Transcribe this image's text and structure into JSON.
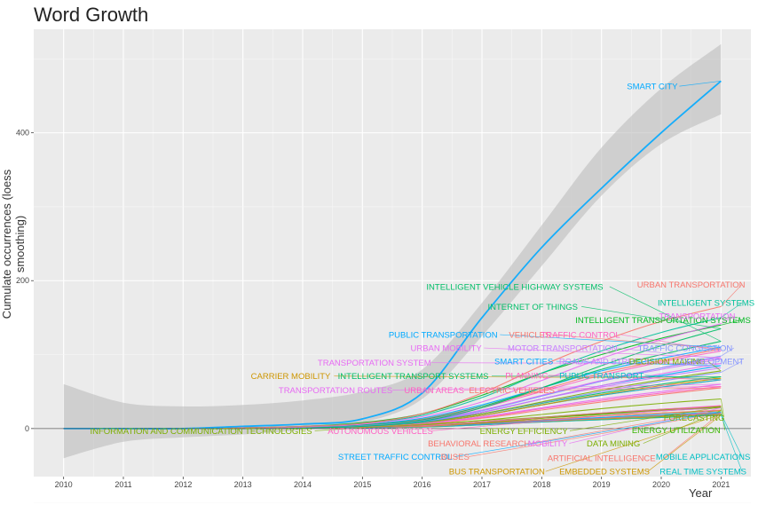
{
  "chart_data": {
    "type": "line",
    "title": "Word Growth",
    "xlabel": "Year",
    "ylabel": "Cumulate occurrences (loess smoothing)",
    "xlim": [
      2009.5,
      2021.5
    ],
    "ylim": [
      -65,
      540
    ],
    "x_ticks": [
      2010,
      2011,
      2012,
      2013,
      2014,
      2015,
      2016,
      2017,
      2018,
      2019,
      2020,
      2021
    ],
    "y_ticks": [
      0,
      200,
      400
    ],
    "grid": true,
    "legend": "none",
    "band": {
      "x": [
        2010,
        2011,
        2012,
        2013,
        2014,
        2015,
        2016,
        2017,
        2018,
        2019,
        2020,
        2021
      ],
      "upper": [
        60,
        35,
        30,
        32,
        38,
        50,
        80,
        170,
        275,
        380,
        460,
        520
      ],
      "lower": [
        -40,
        -18,
        -12,
        -8,
        -2,
        8,
        40,
        125,
        220,
        315,
        385,
        425
      ]
    },
    "series": [
      {
        "name": "SMART CITY",
        "color": "#00a9ff",
        "label_x": 2019.85,
        "label_y": 463,
        "values": [
          0,
          0,
          0,
          3,
          6,
          13,
          48,
          150,
          245,
          325,
          400,
          470
        ]
      },
      {
        "name": "URBAN TRANSPORTATION",
        "color": "#f8766d",
        "label_x": 2020.5,
        "label_y": 195,
        "values": [
          0,
          0,
          0,
          1,
          3,
          7,
          20,
          48,
          85,
          118,
          145,
          165
        ]
      },
      {
        "name": "INTELLIGENT VEHICLE HIGHWAY SYSTEMS",
        "color": "#00be67",
        "label_x": 2017.55,
        "label_y": 192,
        "values": [
          0,
          0,
          0,
          1,
          2,
          5,
          12,
          30,
          55,
          80,
          100,
          118
        ]
      },
      {
        "name": "INTELLIGENT SYSTEMS",
        "color": "#00c19a",
        "label_x": 2020.75,
        "label_y": 170,
        "values": [
          0,
          0,
          0,
          1,
          3,
          7,
          18,
          42,
          75,
          105,
          130,
          150
        ]
      },
      {
        "name": "INTERNET OF THINGS",
        "color": "#00be67",
        "label_x": 2017.85,
        "label_y": 165,
        "values": [
          0,
          0,
          0,
          0,
          1,
          3,
          10,
          28,
          55,
          85,
          112,
          135
        ]
      },
      {
        "name": "INTELLIGENT TRANSPORTATION SYSTEMS",
        "color": "#00b81f",
        "label_x": 2020.03,
        "label_y": 147,
        "values": [
          0,
          0,
          0,
          1,
          3,
          8,
          20,
          45,
          75,
          100,
          122,
          140
        ]
      },
      {
        "name": "TRANSPORTATION",
        "color": "#e76bf3",
        "label_x": 2020.6,
        "label_y": 152,
        "values": [
          0,
          0,
          0,
          1,
          2,
          6,
          16,
          36,
          65,
          95,
          120,
          142
        ]
      },
      {
        "name": "PUBLIC TRANSPORTATION",
        "color": "#00a9ff",
        "label_x": 2016.35,
        "label_y": 127,
        "values": [
          0,
          0,
          0,
          1,
          2,
          5,
          14,
          32,
          55,
          78,
          95,
          110
        ]
      },
      {
        "name": "VEHICLES",
        "color": "#f8766d",
        "label_x": 2017.8,
        "label_y": 127,
        "values": [
          0,
          0,
          0,
          1,
          2,
          5,
          13,
          30,
          52,
          75,
          92,
          108
        ]
      },
      {
        "name": "TRAFFIC CONTROL",
        "color": "#ff61c3",
        "label_x": 2018.65,
        "label_y": 127,
        "values": [
          0,
          0,
          0,
          1,
          2,
          5,
          12,
          28,
          50,
          72,
          90,
          105
        ]
      },
      {
        "name": "URBAN MOBILITY",
        "color": "#e76bf3",
        "label_x": 2016.4,
        "label_y": 109,
        "values": [
          0,
          0,
          0,
          1,
          2,
          4,
          11,
          25,
          45,
          65,
          82,
          96
        ]
      },
      {
        "name": "MOTOR TRANSPORTATION",
        "color": "#c77cff",
        "label_x": 2018.35,
        "label_y": 109,
        "values": [
          0,
          0,
          0,
          1,
          2,
          4,
          11,
          25,
          44,
          64,
          80,
          94
        ]
      },
      {
        "name": "TRAFFIC CONGESTION",
        "color": "#8494ff",
        "label_x": 2020.4,
        "label_y": 109,
        "values": [
          0,
          0,
          0,
          1,
          2,
          4,
          10,
          24,
          44,
          64,
          82,
          98
        ]
      },
      {
        "name": "TRANSPORTATION SYSTEM",
        "color": "#e76bf3",
        "label_x": 2015.2,
        "label_y": 89,
        "values": [
          0,
          0,
          0,
          1,
          2,
          4,
          10,
          22,
          40,
          58,
          74,
          88
        ]
      },
      {
        "name": "SMART CITIES",
        "color": "#00a9ff",
        "label_x": 2017.7,
        "label_y": 91,
        "values": [
          0,
          0,
          0,
          0,
          1,
          3,
          9,
          22,
          40,
          58,
          72,
          85
        ]
      },
      {
        "name": "ROADS AND STREETS",
        "color": "#c77cff",
        "label_x": 2019.05,
        "label_y": 91,
        "values": [
          0,
          0,
          0,
          1,
          2,
          4,
          10,
          22,
          40,
          56,
          70,
          82
        ]
      },
      {
        "name": "DECISION MAKING",
        "color": "#7cae00",
        "label_x": 2020.1,
        "label_y": 91,
        "values": [
          0,
          0,
          0,
          1,
          2,
          4,
          9,
          20,
          36,
          52,
          66,
          78
        ]
      },
      {
        "name": "DEVELOPMENT",
        "color": "#8494ff",
        "label_x": 2020.85,
        "label_y": 91,
        "values": [
          0,
          0,
          0,
          1,
          2,
          4,
          9,
          20,
          35,
          50,
          64,
          76
        ]
      },
      {
        "name": "CARRIER MOBILITY",
        "color": "#cd9600",
        "label_x": 2013.8,
        "label_y": 71,
        "values": [
          0,
          0,
          0,
          1,
          2,
          3,
          8,
          18,
          32,
          46,
          58,
          68
        ]
      },
      {
        "name": "INTELLIGENT TRANSPORT SYSTEMS",
        "color": "#00be67",
        "label_x": 2015.85,
        "label_y": 71,
        "values": [
          0,
          0,
          0,
          1,
          2,
          4,
          9,
          20,
          34,
          48,
          60,
          70
        ]
      },
      {
        "name": "PLANNING",
        "color": "#ff61c3",
        "label_x": 2017.75,
        "label_y": 72,
        "values": [
          0,
          0,
          0,
          1,
          2,
          3,
          8,
          18,
          32,
          45,
          56,
          66
        ]
      },
      {
        "name": "PUBLIC TRANSPORT",
        "color": "#00bfc4",
        "label_x": 2019.0,
        "label_y": 72,
        "values": [
          0,
          0,
          0,
          1,
          2,
          3,
          8,
          18,
          32,
          45,
          56,
          66
        ]
      },
      {
        "name": "TRANSPORTATION ROUTES",
        "color": "#e76bf3",
        "label_x": 2014.55,
        "label_y": 52,
        "values": [
          0,
          0,
          0,
          1,
          1,
          3,
          7,
          16,
          28,
          40,
          50,
          60
        ]
      },
      {
        "name": "URBAN AREAS",
        "color": "#ff61c3",
        "label_x": 2016.2,
        "label_y": 52,
        "values": [
          0,
          0,
          0,
          1,
          1,
          3,
          7,
          15,
          27,
          38,
          48,
          57
        ]
      },
      {
        "name": "ELECTRIC VEHICLES",
        "color": "#f8766d",
        "label_x": 2017.5,
        "label_y": 52,
        "values": [
          0,
          0,
          0,
          0,
          1,
          2,
          6,
          14,
          25,
          36,
          46,
          55
        ]
      },
      {
        "name": "FORECASTING",
        "color": "#7cae00",
        "label_x": 2020.55,
        "label_y": 15,
        "values": [
          0,
          0,
          0,
          0,
          1,
          2,
          5,
          11,
          19,
          27,
          34,
          40
        ]
      },
      {
        "name": "INFORMATION AND COMMUNICATION TECHNOLOGIES",
        "color": "#7cae00",
        "label_x": 2012.3,
        "label_y": -3,
        "values": [
          0,
          0,
          0,
          1,
          1,
          2,
          4,
          9,
          15,
          21,
          26,
          30
        ]
      },
      {
        "name": "AUTONOMOUS VEHICLES",
        "color": "#ff61c3",
        "label_x": 2015.3,
        "label_y": -3,
        "values": [
          0,
          0,
          0,
          0,
          1,
          2,
          4,
          9,
          15,
          21,
          26,
          31
        ]
      },
      {
        "name": "ENERGY EFFICIENCY",
        "color": "#7cae00",
        "label_x": 2017.7,
        "label_y": -3,
        "values": [
          0,
          0,
          0,
          0,
          1,
          2,
          4,
          8,
          14,
          20,
          25,
          29
        ]
      },
      {
        "name": "ENERGY UTILIZATION",
        "color": "#39b600",
        "label_x": 2020.25,
        "label_y": -2,
        "values": [
          0,
          0,
          0,
          0,
          1,
          2,
          4,
          8,
          14,
          19,
          24,
          28
        ]
      },
      {
        "name": "BEHAVIORAL RESEARCH",
        "color": "#f8766d",
        "label_x": 2016.95,
        "label_y": -20,
        "values": [
          0,
          0,
          0,
          0,
          1,
          2,
          3,
          7,
          12,
          17,
          21,
          25
        ]
      },
      {
        "name": "MOBILITY",
        "color": "#e76bf3",
        "label_x": 2018.1,
        "label_y": -20,
        "values": [
          0,
          0,
          0,
          1,
          1,
          2,
          4,
          9,
          15,
          20,
          24,
          28
        ]
      },
      {
        "name": "DATA MINING",
        "color": "#7cae00",
        "label_x": 2019.2,
        "label_y": -20,
        "values": [
          0,
          0,
          0,
          0,
          1,
          2,
          3,
          7,
          12,
          17,
          21,
          24
        ]
      },
      {
        "name": "STREET TRAFFIC CONTROL",
        "color": "#00a9ff",
        "label_x": 2015.55,
        "label_y": -38,
        "values": [
          0,
          0,
          0,
          0,
          1,
          1,
          3,
          6,
          11,
          15,
          19,
          22
        ]
      },
      {
        "name": "BUSES",
        "color": "#f8766d",
        "label_x": 2016.55,
        "label_y": -38,
        "values": [
          0,
          0,
          0,
          0,
          1,
          1,
          3,
          6,
          10,
          14,
          18,
          21
        ]
      },
      {
        "name": "ARTIFICIAL INTELLIGENCE",
        "color": "#f8766d",
        "label_x": 2019.0,
        "label_y": -40,
        "values": [
          0,
          0,
          0,
          0,
          1,
          1,
          3,
          6,
          10,
          14,
          18,
          21
        ]
      },
      {
        "name": "MOBILE APPLICATIONS",
        "color": "#00bfc4",
        "label_x": 2020.7,
        "label_y": -38,
        "values": [
          0,
          0,
          0,
          0,
          1,
          1,
          3,
          6,
          10,
          14,
          17,
          20
        ]
      },
      {
        "name": "BUS TRANSPORTATION",
        "color": "#cd9600",
        "label_x": 2017.25,
        "label_y": -58,
        "values": [
          0,
          0,
          0,
          0,
          1,
          1,
          3,
          6,
          10,
          13,
          16,
          19
        ]
      },
      {
        "name": "EMBEDDED SYSTEMS",
        "color": "#cd9600",
        "label_x": 2019.05,
        "label_y": -58,
        "values": [
          0,
          0,
          0,
          0,
          1,
          1,
          2,
          5,
          9,
          12,
          15,
          18
        ]
      },
      {
        "name": "REAL TIME SYSTEMS",
        "color": "#00bfc4",
        "label_x": 2020.7,
        "label_y": -58,
        "values": [
          0,
          0,
          0,
          0,
          1,
          1,
          2,
          5,
          9,
          12,
          15,
          18
        ]
      }
    ]
  }
}
